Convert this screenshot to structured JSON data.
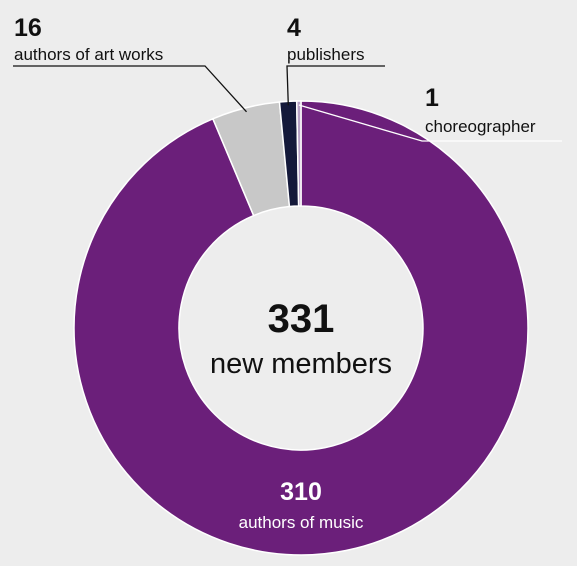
{
  "chart_data": {
    "type": "pie",
    "variant": "donut",
    "title": "",
    "center": {
      "value": "331",
      "label": "new members"
    },
    "slices": [
      {
        "label": "authors of music",
        "value": 310,
        "value_text": "310",
        "color": "#6b1f7a",
        "label_color": "#ffffff"
      },
      {
        "label": "authors of art works",
        "value": 16,
        "value_text": "16",
        "color": "#c8c8c8",
        "label_color": "#111111"
      },
      {
        "label": "publishers",
        "value": 4,
        "value_text": "4",
        "color": "#14193a",
        "label_color": "#111111"
      },
      {
        "label": "choreographer",
        "value": 1,
        "value_text": "1",
        "color": "#b9a3c7",
        "label_color": "#111111"
      }
    ],
    "colors": {
      "background": "#ededed",
      "center_text": "#111111",
      "separator": "#ffffff",
      "leader_line": "#111111"
    }
  }
}
